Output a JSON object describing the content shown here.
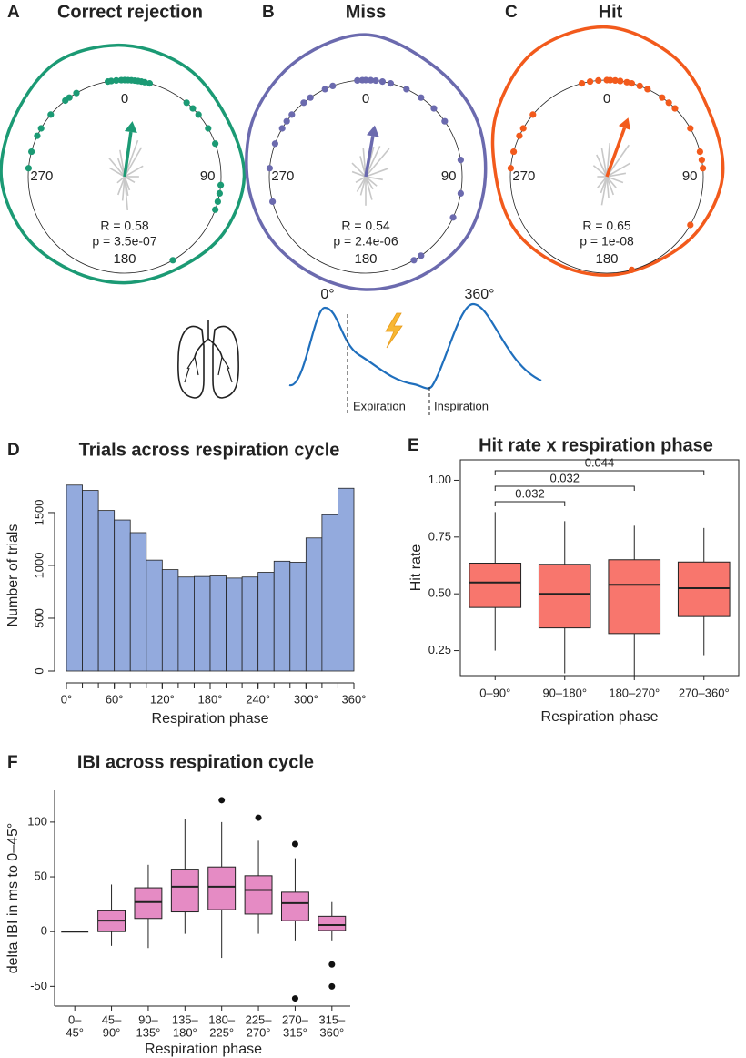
{
  "chart_data": [
    {
      "type": "polar",
      "panel": "A",
      "title": "Correct rejection",
      "color": "#1b9a74",
      "rlim": [
        0,
        1
      ],
      "angle_labels": [
        0,
        90,
        180,
        270
      ],
      "points": [
        350,
        352,
        355,
        358,
        0,
        2,
        4,
        6,
        8,
        10,
        12,
        15,
        330,
        325,
        322,
        310,
        300,
        295,
        285,
        275,
        40,
        45,
        50,
        60,
        70,
        95,
        100,
        105,
        110,
        150
      ],
      "vector_angles": [
        170,
        175,
        185,
        160,
        30,
        20,
        10,
        350,
        340,
        320,
        300,
        60,
        90,
        120,
        200,
        230
      ],
      "vector_lengths": [
        0.2,
        0.35,
        0.25,
        0.15,
        0.35,
        0.4,
        0.3,
        0.28,
        0.2,
        0.25,
        0.18,
        0.22,
        0.15,
        0.12,
        0.2,
        0.1
      ],
      "density": [
        1.36,
        1.3,
        1.22,
        1.24,
        1.18,
        1.1,
        1.1,
        1.12,
        1.2,
        1.28,
        1.3,
        1.38
      ],
      "mean": {
        "angle": 8,
        "r": 0.58,
        "r_label": "R = 0.58"
      },
      "p_label": "p = 3.5e-07"
    },
    {
      "type": "polar",
      "panel": "B",
      "title": "Miss",
      "color": "#6b6aae",
      "rlim": [
        0,
        1
      ],
      "angle_labels": [
        0,
        90,
        180,
        270
      ],
      "points": [
        355,
        358,
        0,
        3,
        6,
        10,
        15,
        340,
        335,
        325,
        320,
        310,
        305,
        300,
        290,
        275,
        255,
        25,
        35,
        45,
        55,
        80,
        100,
        115,
        145,
        150
      ],
      "vector_angles": [
        165,
        180,
        195,
        150,
        40,
        25,
        15,
        355,
        345,
        315,
        290,
        70,
        100,
        130,
        210,
        240
      ],
      "vector_lengths": [
        0.25,
        0.3,
        0.2,
        0.15,
        0.38,
        0.35,
        0.32,
        0.3,
        0.22,
        0.2,
        0.15,
        0.25,
        0.18,
        0.15,
        0.18,
        0.12
      ],
      "density": [
        1.47,
        1.35,
        1.3,
        1.24,
        1.22,
        1.18,
        1.17,
        1.15,
        1.18,
        1.23,
        1.32,
        1.4
      ],
      "mean": {
        "angle": 10,
        "r": 0.54,
        "r_label": "R = 0.54"
      },
      "p_label": "p = 2.4e-06"
    },
    {
      "type": "polar",
      "panel": "C",
      "title": "Hit",
      "color": "#f25a1c",
      "rlim": [
        0,
        1
      ],
      "angle_labels": [
        0,
        90,
        180,
        270
      ],
      "points": [
        345,
        350,
        355,
        0,
        2,
        5,
        8,
        12,
        15,
        20,
        25,
        35,
        40,
        45,
        60,
        75,
        80,
        85,
        310,
        300,
        295,
        285,
        275,
        120,
        165
      ],
      "vector_angles": [
        175,
        190,
        160,
        200,
        35,
        20,
        5,
        350,
        335,
        310,
        60,
        80,
        110,
        140,
        220,
        270
      ],
      "vector_lengths": [
        0.22,
        0.3,
        0.2,
        0.18,
        0.4,
        0.38,
        0.35,
        0.3,
        0.25,
        0.18,
        0.28,
        0.2,
        0.18,
        0.15,
        0.15,
        0.1
      ],
      "density": [
        1.55,
        1.42,
        1.25,
        1.2,
        1.1,
        1.02,
        1.02,
        1.04,
        1.1,
        1.15,
        1.32,
        1.5
      ],
      "mean": {
        "angle": 20,
        "r": 0.65,
        "r_label": "R = 0.65"
      },
      "p_label": "p = 1e-08"
    },
    {
      "type": "histogram",
      "panel": "D",
      "title": "Trials across respiration cycle",
      "color": "#93aadd",
      "x_label": "Respiration phase",
      "y_label": "Number of trials",
      "bins": [
        0,
        20,
        40,
        60,
        80,
        100,
        120,
        140,
        160,
        180,
        200,
        220,
        240,
        260,
        280,
        300,
        320,
        340,
        360
      ],
      "values": [
        1760,
        1710,
        1520,
        1430,
        1310,
        1050,
        960,
        890,
        895,
        900,
        880,
        890,
        935,
        1040,
        1030,
        1260,
        1480,
        1730
      ],
      "xlim": [
        0,
        360
      ],
      "ylim": [
        0,
        1870
      ],
      "xticks": [
        {
          "value": 0,
          "label": "0°"
        },
        {
          "value": 60,
          "label": "60°"
        },
        {
          "value": 120,
          "label": "120°"
        },
        {
          "value": 180,
          "label": "180°"
        },
        {
          "value": 240,
          "label": "240°"
        },
        {
          "value": 300,
          "label": "300°"
        },
        {
          "value": 360,
          "label": "360°"
        }
      ],
      "yticks": [
        0,
        500,
        1000,
        1500
      ]
    },
    {
      "type": "box",
      "panel": "E",
      "title": "Hit rate x respiration phase",
      "color": "#f8766d",
      "x_label": "Respiration phase",
      "y_label": "Hit rate",
      "categories": [
        "0–90°",
        "90–180°",
        "180–270°",
        "270–360°"
      ],
      "boxes": [
        {
          "low": 0.25,
          "q1": 0.44,
          "median": 0.55,
          "q3": 0.635,
          "high": 0.86,
          "outliers": []
        },
        {
          "low": 0.15,
          "q1": 0.35,
          "median": 0.5,
          "q3": 0.63,
          "high": 0.82,
          "outliers": []
        },
        {
          "low": 0.14,
          "q1": 0.325,
          "median": 0.54,
          "q3": 0.65,
          "high": 0.8,
          "outliers": []
        },
        {
          "low": 0.23,
          "q1": 0.4,
          "median": 0.525,
          "q3": 0.64,
          "high": 0.79,
          "outliers": []
        }
      ],
      "comparisons": [
        {
          "from": "0–90°",
          "to": "90–180°",
          "p": 0.032
        },
        {
          "from": "0–90°",
          "to": "180–270°",
          "p": 0.032
        },
        {
          "from": "0–90°",
          "to": "270–360°",
          "p": 0.044
        }
      ],
      "ylim": [
        0.14,
        1.09
      ],
      "yticks": [
        0.25,
        {
          "value": 0.5,
          "label": "0.50"
        },
        0.75,
        {
          "value": 1,
          "label": "1.00"
        }
      ]
    },
    {
      "type": "box",
      "panel": "F",
      "title": "IBI across respiration cycle",
      "color": "#e58bc4",
      "x_label": "Respiration phase",
      "y_label": "delta IBI in ms to 0–45°",
      "categories": [
        [
          "0–",
          "45°"
        ],
        [
          "45–",
          "90°"
        ],
        [
          "90–",
          "135°"
        ],
        [
          "135–",
          "180°"
        ],
        [
          "180–",
          "225°"
        ],
        [
          "225–",
          "270°"
        ],
        [
          "270–",
          "315°"
        ],
        [
          "315–",
          "360°"
        ]
      ],
      "boxes": [
        {
          "low": 0,
          "q1": 0,
          "median": 0,
          "q3": 0,
          "high": 0,
          "outliers": []
        },
        {
          "low": -13,
          "q1": 0,
          "median": 10,
          "q3": 19,
          "high": 43,
          "outliers": []
        },
        {
          "low": -15,
          "q1": 12,
          "median": 27,
          "q3": 40,
          "high": 61,
          "outliers": []
        },
        {
          "low": -2,
          "q1": 18,
          "median": 41,
          "q3": 57,
          "high": 103,
          "outliers": []
        },
        {
          "low": -24,
          "q1": 20,
          "median": 41,
          "q3": 59,
          "high": 100,
          "outliers": [
            120
          ]
        },
        {
          "low": -2,
          "q1": 16,
          "median": 38,
          "q3": 51,
          "high": 83,
          "outliers": [
            104
          ]
        },
        {
          "low": -8,
          "q1": 10,
          "median": 26,
          "q3": 36,
          "high": 67,
          "outliers": [
            80,
            -61
          ]
        },
        {
          "low": -8,
          "q1": 1,
          "median": 6,
          "q3": 14,
          "high": 27,
          "outliers": [
            -30,
            -50
          ]
        }
      ],
      "ylim": [
        -68,
        129
      ],
      "yticks": [
        -50,
        0,
        50,
        100
      ]
    }
  ],
  "diagram": {
    "start_label": "0°",
    "end_label": "360°",
    "expiration": "Expiration",
    "inspiration": "Inspiration"
  }
}
